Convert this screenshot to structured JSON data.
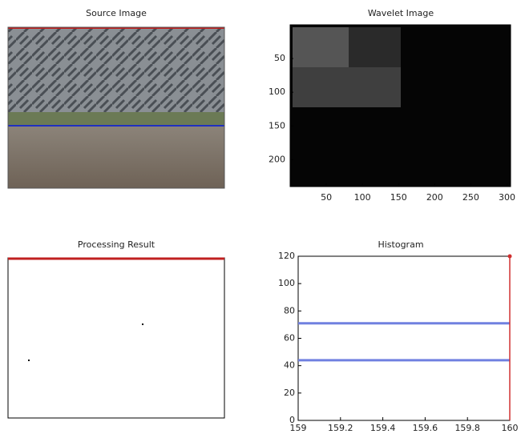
{
  "source_image": {
    "title": "Source Image"
  },
  "wavelet_image": {
    "title": "Wavelet Image",
    "xlim": [
      0,
      305
    ],
    "ylim": [
      240,
      0
    ],
    "xticks": [
      50,
      100,
      150,
      200,
      250,
      300
    ],
    "yticks": [
      50,
      100,
      150,
      200
    ]
  },
  "processing_result": {
    "title": "Processing Result"
  },
  "chart_data": {
    "type": "line",
    "title": "Histogram",
    "x": [
      159,
      159.25,
      159.75,
      160
    ],
    "series": [
      {
        "color": "#7080e0",
        "values": [
          71,
          71,
          71,
          71
        ]
      },
      {
        "color": "#7080e0",
        "values": [
          44,
          44,
          44,
          44
        ]
      }
    ],
    "stem": {
      "x": 160,
      "value": 120,
      "color": "#d03030"
    },
    "xlim": [
      159,
      160
    ],
    "ylim": [
      0,
      120
    ],
    "xticks": [
      159,
      159.2,
      159.4,
      159.6,
      159.8,
      160
    ],
    "yticks": [
      0,
      20,
      40,
      60,
      80,
      100,
      120
    ]
  }
}
